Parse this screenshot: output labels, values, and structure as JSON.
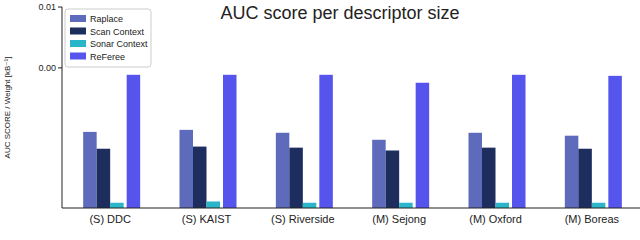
{
  "chart_data": {
    "type": "bar",
    "title": "AUC score per descriptor size",
    "y_label": "AUC SCORE / Weight [kB⁻¹]",
    "categories": [
      "(S) DDC",
      "(S) KAIST",
      "(S) Riverside",
      "(M) Sejong",
      "(M) Oxford",
      "(M) Boreas"
    ],
    "series": [
      {
        "name": "Raplace",
        "color": "#5e6bbd",
        "values": [
          8.9e-05,
          9.6e-05,
          8.6e-05,
          6.6e-05,
          8.6e-05,
          7.7e-05
        ]
      },
      {
        "name": "Scan Context",
        "color": "#1c2d5e",
        "values": [
          4.7e-05,
          5.1e-05,
          4.9e-05,
          4.4e-05,
          4.9e-05,
          4.7e-05
        ]
      },
      {
        "name": "Sonar Context",
        "color": "#2bb5c8",
        "values": [
          6.1e-06,
          6.4e-06,
          6.1e-06,
          6.1e-06,
          6.1e-06,
          6.1e-06
        ]
      },
      {
        "name": "ReFeree",
        "color": "#5555ee",
        "values": [
          0.00077,
          0.00077,
          0.00077,
          0.00057,
          0.00077,
          0.00074
        ]
      }
    ],
    "log": "y",
    "ylim": [
      5e-06,
      0.01
    ],
    "yticks": [
      {
        "value": 0.01,
        "label": "0.01"
      },
      {
        "value": 0.001,
        "label": "0.00"
      }
    ],
    "legend": "upper left",
    "grid": false
  }
}
